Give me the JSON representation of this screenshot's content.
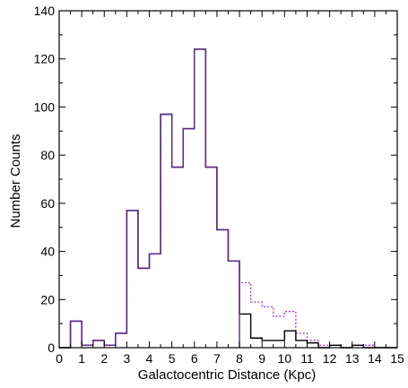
{
  "chart_data": {
    "type": "bar",
    "subtype": "step-histogram",
    "xlabel": "Galactocentric Distance (Kpc)",
    "ylabel": "Number Counts",
    "xlim": [
      0,
      15
    ],
    "ylim": [
      0,
      140
    ],
    "x_ticks": [
      "0",
      "1",
      "2",
      "3",
      "4",
      "5",
      "6",
      "7",
      "8",
      "9",
      "10",
      "11",
      "12",
      "13",
      "14",
      "15"
    ],
    "y_ticks": [
      "0",
      "20",
      "40",
      "60",
      "80",
      "100",
      "120",
      "140"
    ],
    "bin_width": 0.5,
    "bin_edges_start": 0,
    "grid": false,
    "legend": "none",
    "series": [
      {
        "style": "solid",
        "color": "#000000",
        "values": [
          0,
          11,
          1,
          3,
          1,
          6,
          57,
          33,
          39,
          97,
          75,
          91,
          124,
          75,
          49,
          36,
          14,
          4,
          3,
          3,
          7,
          3,
          2,
          0,
          1,
          0,
          1,
          0,
          0,
          0
        ]
      },
      {
        "style": "dotted",
        "color": "#9933cc",
        "values": [
          0,
          11,
          1,
          3,
          1,
          6,
          57,
          33,
          39,
          97,
          75,
          91,
          124,
          75,
          49,
          36,
          27,
          19,
          17,
          13,
          15,
          6,
          3,
          1,
          1,
          0,
          1,
          1,
          0,
          0
        ]
      },
      {
        "style": "solid",
        "color": "#5b2c8a",
        "values": [
          0,
          11,
          1,
          3,
          1,
          6,
          57,
          33,
          39,
          97,
          75,
          91,
          124,
          75,
          49,
          36,
          null,
          null,
          null,
          null,
          null,
          null,
          null,
          null,
          null,
          null,
          null,
          null,
          null,
          null
        ]
      }
    ]
  }
}
